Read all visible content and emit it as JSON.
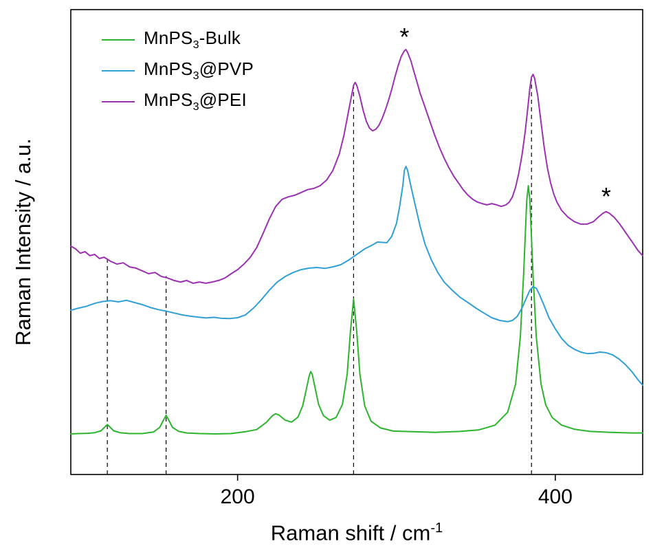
{
  "chart_data": {
    "type": "line",
    "title": "",
    "xlabel_main": "Raman shift / cm",
    "xlabel_sup": "-1",
    "ylabel": "Raman Intensity / a.u.",
    "x_range": [
      95,
      455
    ],
    "y_range": [
      0,
      150
    ],
    "x_ticks": [
      200,
      400
    ],
    "grid": false,
    "legend_position": "top-left",
    "background": "#ffffff",
    "axis_color": "#000000",
    "dashed_guides": [
      {
        "x": 118,
        "u_top": 70.5
      },
      {
        "x": 155,
        "u_top": 64
      },
      {
        "x": 273,
        "u_top": 125
      },
      {
        "x": 385,
        "u_top": 128
      }
    ],
    "annotations": [
      {
        "text": "*",
        "x": 305,
        "u": 138.5
      },
      {
        "text": "*",
        "x": 432,
        "u": 87
      }
    ],
    "series": [
      {
        "name": "MnPS3-Bulk",
        "label_prefix": "MnPS",
        "label_sub": "3",
        "label_suffix": "-Bulk",
        "color": "#2cb52c",
        "points": [
          [
            95,
            13.1
          ],
          [
            100,
            13.2
          ],
          [
            106,
            13.3
          ],
          [
            110,
            13.5
          ],
          [
            114,
            14.1
          ],
          [
            116,
            15.1
          ],
          [
            118,
            16.1
          ],
          [
            120,
            15.1
          ],
          [
            122,
            14.1
          ],
          [
            126,
            13.5
          ],
          [
            132,
            13.2
          ],
          [
            140,
            13.2
          ],
          [
            147,
            13.7
          ],
          [
            151,
            15.2
          ],
          [
            153,
            17.2
          ],
          [
            155,
            19.1
          ],
          [
            157,
            17.2
          ],
          [
            159,
            15.2
          ],
          [
            163,
            13.9
          ],
          [
            168,
            13.4
          ],
          [
            176,
            13.2
          ],
          [
            186,
            13.1
          ],
          [
            196,
            13.2
          ],
          [
            205,
            13.8
          ],
          [
            212,
            14.5
          ],
          [
            218,
            16.8
          ],
          [
            222,
            19.0
          ],
          [
            224,
            19.6
          ],
          [
            226,
            19.2
          ],
          [
            230,
            17.5
          ],
          [
            234,
            16.9
          ],
          [
            238,
            18.5
          ],
          [
            241,
            22.2
          ],
          [
            243,
            26.8
          ],
          [
            245,
            31.7
          ],
          [
            246,
            33.2
          ],
          [
            247,
            32.3
          ],
          [
            249,
            27.4
          ],
          [
            251,
            22.6
          ],
          [
            254,
            19.0
          ],
          [
            258,
            17.5
          ],
          [
            262,
            18.4
          ],
          [
            266,
            22.6
          ],
          [
            269,
            32.4
          ],
          [
            271,
            46.1
          ],
          [
            273,
            56.6
          ],
          [
            275,
            46.1
          ],
          [
            277,
            32.3
          ],
          [
            280,
            22.1
          ],
          [
            284,
            17.2
          ],
          [
            290,
            15.0
          ],
          [
            298,
            14.0
          ],
          [
            310,
            13.8
          ],
          [
            325,
            13.6
          ],
          [
            340,
            13.9
          ],
          [
            352,
            14.4
          ],
          [
            362,
            15.9
          ],
          [
            370,
            20.1
          ],
          [
            375,
            29.2
          ],
          [
            378,
            44.4
          ],
          [
            380,
            64.3
          ],
          [
            382,
            88.4
          ],
          [
            383,
            93.2
          ],
          [
            384,
            88.4
          ],
          [
            386,
            64.3
          ],
          [
            388,
            44.4
          ],
          [
            391,
            29.2
          ],
          [
            394,
            22.4
          ],
          [
            398,
            18.4
          ],
          [
            404,
            15.9
          ],
          [
            412,
            14.6
          ],
          [
            422,
            13.9
          ],
          [
            435,
            13.6
          ],
          [
            448,
            13.4
          ],
          [
            455,
            13.4
          ]
        ]
      },
      {
        "name": "MnPS3@PVP",
        "label_prefix": "MnPS",
        "label_sub": "3",
        "label_suffix": "@PVP",
        "color": "#2f9fd6",
        "points": [
          [
            95,
            53.0
          ],
          [
            100,
            53.7
          ],
          [
            105,
            54.3
          ],
          [
            110,
            55.2
          ],
          [
            115,
            55.8
          ],
          [
            120,
            56.1
          ],
          [
            125,
            55.7
          ],
          [
            130,
            56.2
          ],
          [
            135,
            55.5
          ],
          [
            140,
            54.8
          ],
          [
            145,
            53.9
          ],
          [
            150,
            53.2
          ],
          [
            155,
            52.7
          ],
          [
            160,
            52.1
          ],
          [
            165,
            51.5
          ],
          [
            170,
            51.1
          ],
          [
            175,
            50.8
          ],
          [
            180,
            50.5
          ],
          [
            185,
            50.7
          ],
          [
            190,
            50.4
          ],
          [
            195,
            50.3
          ],
          [
            200,
            50.6
          ],
          [
            205,
            51.5
          ],
          [
            210,
            53.7
          ],
          [
            215,
            56.4
          ],
          [
            220,
            59.5
          ],
          [
            225,
            62.1
          ],
          [
            230,
            63.9
          ],
          [
            235,
            65.2
          ],
          [
            240,
            66.1
          ],
          [
            245,
            66.6
          ],
          [
            250,
            66.8
          ],
          [
            255,
            66.5
          ],
          [
            260,
            67.0
          ],
          [
            265,
            67.7
          ],
          [
            270,
            69.2
          ],
          [
            275,
            71.0
          ],
          [
            280,
            72.8
          ],
          [
            285,
            74.1
          ],
          [
            288,
            75.0
          ],
          [
            291,
            74.9
          ],
          [
            294,
            74.8
          ],
          [
            297,
            76.8
          ],
          [
            300,
            81.0
          ],
          [
            302,
            86.5
          ],
          [
            304,
            93.2
          ],
          [
            305,
            98.1
          ],
          [
            306,
            99.4
          ],
          [
            307,
            98.1
          ],
          [
            309,
            93.2
          ],
          [
            312,
            86.5
          ],
          [
            315,
            79.9
          ],
          [
            318,
            74.3
          ],
          [
            322,
            69.2
          ],
          [
            326,
            65.2
          ],
          [
            330,
            62.1
          ],
          [
            335,
            59.5
          ],
          [
            340,
            57.2
          ],
          [
            345,
            55.5
          ],
          [
            350,
            53.7
          ],
          [
            355,
            52.1
          ],
          [
            360,
            50.6
          ],
          [
            365,
            49.7
          ],
          [
            370,
            49.3
          ],
          [
            373,
            49.7
          ],
          [
            376,
            51.0
          ],
          [
            379,
            53.7
          ],
          [
            382,
            57.2
          ],
          [
            384,
            59.5
          ],
          [
            386,
            60.6
          ],
          [
            388,
            60.1
          ],
          [
            390,
            58.1
          ],
          [
            393,
            54.4
          ],
          [
            396,
            50.6
          ],
          [
            400,
            47.0
          ],
          [
            404,
            43.9
          ],
          [
            408,
            41.7
          ],
          [
            412,
            40.4
          ],
          [
            416,
            39.5
          ],
          [
            420,
            39.0
          ],
          [
            424,
            39.1
          ],
          [
            428,
            39.5
          ],
          [
            432,
            39.3
          ],
          [
            436,
            38.6
          ],
          [
            440,
            37.3
          ],
          [
            444,
            35.5
          ],
          [
            448,
            33.3
          ],
          [
            452,
            30.6
          ],
          [
            455,
            28.8
          ]
        ]
      },
      {
        "name": "MnPS3@PEI",
        "label_prefix": "MnPS",
        "label_sub": "3",
        "label_suffix": "@PEI",
        "color": "#9b30b0",
        "points": [
          [
            95,
            73.7
          ],
          [
            98,
            72.8
          ],
          [
            101,
            71.4
          ],
          [
            104,
            71.9
          ],
          [
            107,
            70.6
          ],
          [
            110,
            71.0
          ],
          [
            113,
            69.7
          ],
          [
            116,
            70.1
          ],
          [
            120,
            68.8
          ],
          [
            124,
            67.9
          ],
          [
            128,
            68.3
          ],
          [
            132,
            67.0
          ],
          [
            136,
            66.6
          ],
          [
            140,
            65.7
          ],
          [
            144,
            64.8
          ],
          [
            148,
            65.2
          ],
          [
            152,
            63.9
          ],
          [
            156,
            63.4
          ],
          [
            160,
            62.6
          ],
          [
            164,
            62.1
          ],
          [
            168,
            62.6
          ],
          [
            172,
            61.7
          ],
          [
            176,
            62.1
          ],
          [
            180,
            61.7
          ],
          [
            184,
            62.1
          ],
          [
            188,
            62.6
          ],
          [
            192,
            63.4
          ],
          [
            196,
            64.8
          ],
          [
            200,
            66.1
          ],
          [
            204,
            67.9
          ],
          [
            208,
            70.1
          ],
          [
            212,
            73.2
          ],
          [
            216,
            77.7
          ],
          [
            220,
            82.5
          ],
          [
            224,
            86.5
          ],
          [
            228,
            88.8
          ],
          [
            232,
            89.6
          ],
          [
            236,
            90.1
          ],
          [
            240,
            91.0
          ],
          [
            244,
            91.9
          ],
          [
            248,
            92.3
          ],
          [
            252,
            93.2
          ],
          [
            256,
            95.0
          ],
          [
            260,
            98.1
          ],
          [
            264,
            103.4
          ],
          [
            267,
            109.6
          ],
          [
            270,
            117.6
          ],
          [
            272,
            122.9
          ],
          [
            273,
            125.6
          ],
          [
            274,
            126.5
          ],
          [
            275,
            125.6
          ],
          [
            277,
            122.0
          ],
          [
            279,
            117.6
          ],
          [
            281,
            114.0
          ],
          [
            283,
            111.8
          ],
          [
            285,
            110.9
          ],
          [
            287,
            111.4
          ],
          [
            289,
            112.7
          ],
          [
            291,
            114.9
          ],
          [
            293,
            117.6
          ],
          [
            295,
            120.7
          ],
          [
            297,
            124.2
          ],
          [
            299,
            128.2
          ],
          [
            301,
            131.8
          ],
          [
            303,
            134.9
          ],
          [
            305,
            136.7
          ],
          [
            306,
            137.1
          ],
          [
            307,
            136.2
          ],
          [
            309,
            133.6
          ],
          [
            311,
            130.0
          ],
          [
            313,
            126.5
          ],
          [
            315,
            122.9
          ],
          [
            318,
            118.5
          ],
          [
            321,
            114.0
          ],
          [
            324,
            109.6
          ],
          [
            327,
            105.6
          ],
          [
            330,
            102.1
          ],
          [
            333,
            99.0
          ],
          [
            336,
            96.3
          ],
          [
            339,
            94.1
          ],
          [
            342,
            91.9
          ],
          [
            345,
            90.1
          ],
          [
            348,
            88.8
          ],
          [
            351,
            87.9
          ],
          [
            354,
            87.4
          ],
          [
            357,
            87.0
          ],
          [
            360,
            87.4
          ],
          [
            363,
            87.0
          ],
          [
            366,
            86.5
          ],
          [
            369,
            87.0
          ],
          [
            371,
            87.9
          ],
          [
            373,
            89.6
          ],
          [
            375,
            92.7
          ],
          [
            377,
            97.2
          ],
          [
            379,
            103.0
          ],
          [
            381,
            110.5
          ],
          [
            383,
            119.8
          ],
          [
            384,
            124.7
          ],
          [
            385,
            128.2
          ],
          [
            386,
            129.1
          ],
          [
            387,
            127.8
          ],
          [
            389,
            122.0
          ],
          [
            391,
            113.6
          ],
          [
            393,
            105.6
          ],
          [
            395,
            99.0
          ],
          [
            397,
            94.1
          ],
          [
            399,
            90.5
          ],
          [
            401,
            87.9
          ],
          [
            404,
            85.2
          ],
          [
            408,
            83.0
          ],
          [
            412,
            81.6
          ],
          [
            416,
            80.8
          ],
          [
            420,
            80.8
          ],
          [
            424,
            81.6
          ],
          [
            427,
            83.0
          ],
          [
            430,
            84.3
          ],
          [
            432,
            84.8
          ],
          [
            434,
            84.3
          ],
          [
            437,
            83.0
          ],
          [
            440,
            81.2
          ],
          [
            443,
            79.0
          ],
          [
            446,
            76.8
          ],
          [
            449,
            74.6
          ],
          [
            452,
            72.3
          ],
          [
            455,
            70.6
          ]
        ]
      }
    ]
  }
}
